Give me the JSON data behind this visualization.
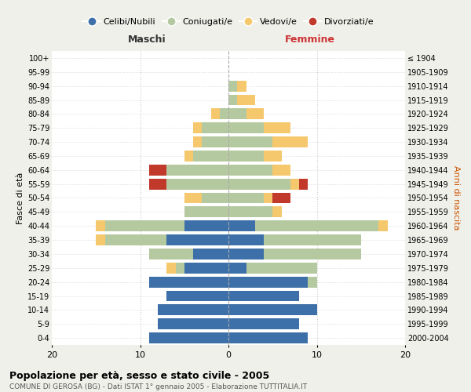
{
  "age_groups": [
    "0-4",
    "5-9",
    "10-14",
    "15-19",
    "20-24",
    "25-29",
    "30-34",
    "35-39",
    "40-44",
    "45-49",
    "50-54",
    "55-59",
    "60-64",
    "65-69",
    "70-74",
    "75-79",
    "80-84",
    "85-89",
    "90-94",
    "95-99",
    "100+"
  ],
  "birth_years": [
    "2000-2004",
    "1995-1999",
    "1990-1994",
    "1985-1989",
    "1980-1984",
    "1975-1979",
    "1970-1974",
    "1965-1969",
    "1960-1964",
    "1955-1959",
    "1950-1954",
    "1945-1949",
    "1940-1944",
    "1935-1939",
    "1930-1934",
    "1925-1929",
    "1920-1924",
    "1915-1919",
    "1910-1914",
    "1905-1909",
    "≤ 1904"
  ],
  "male": {
    "celibi": [
      9,
      8,
      8,
      7,
      9,
      5,
      4,
      7,
      5,
      0,
      0,
      0,
      0,
      0,
      0,
      0,
      0,
      0,
      0,
      0,
      0
    ],
    "coniugati": [
      0,
      0,
      0,
      0,
      0,
      1,
      5,
      7,
      9,
      5,
      3,
      7,
      7,
      4,
      3,
      3,
      1,
      0,
      0,
      0,
      0
    ],
    "vedovi": [
      0,
      0,
      0,
      0,
      0,
      1,
      0,
      1,
      1,
      0,
      2,
      0,
      0,
      1,
      1,
      1,
      1,
      0,
      0,
      0,
      0
    ],
    "divorziati": [
      0,
      0,
      0,
      0,
      0,
      0,
      0,
      0,
      0,
      0,
      0,
      2,
      2,
      0,
      0,
      0,
      0,
      0,
      0,
      0,
      0
    ]
  },
  "female": {
    "nubili": [
      9,
      8,
      10,
      8,
      9,
      2,
      4,
      4,
      3,
      0,
      0,
      0,
      0,
      0,
      0,
      0,
      0,
      0,
      0,
      0,
      0
    ],
    "coniugate": [
      0,
      0,
      0,
      0,
      1,
      8,
      11,
      11,
      14,
      5,
      4,
      7,
      5,
      4,
      5,
      4,
      2,
      1,
      1,
      0,
      0
    ],
    "vedove": [
      0,
      0,
      0,
      0,
      0,
      0,
      0,
      0,
      1,
      1,
      1,
      1,
      2,
      2,
      4,
      3,
      2,
      2,
      1,
      0,
      0
    ],
    "divorziate": [
      0,
      0,
      0,
      0,
      0,
      0,
      0,
      0,
      0,
      0,
      2,
      1,
      0,
      0,
      0,
      0,
      0,
      0,
      0,
      0,
      0
    ]
  },
  "colors": {
    "celibi": "#3d6fa8",
    "coniugati": "#b5c9a0",
    "vedovi": "#f5c86e",
    "divorziati": "#c0392b"
  },
  "legend_labels": [
    "Celibi/Nubili",
    "Coniugati/e",
    "Vedovi/e",
    "Divorziati/e"
  ],
  "ylabel_left": "Fasce di età",
  "ylabel_right": "Anni di nascita",
  "title": "Popolazione per età, sesso e stato civile - 2005",
  "subtitle": "COMUNE DI GEROSA (BG) - Dati ISTAT 1° gennaio 2005 - Elaborazione TUTTITALIA.IT",
  "xlim": 20,
  "maschi_label": "Maschi",
  "femmine_label": "Femmine",
  "bg_color": "#f0f0eb",
  "plot_bg": "#ffffff"
}
